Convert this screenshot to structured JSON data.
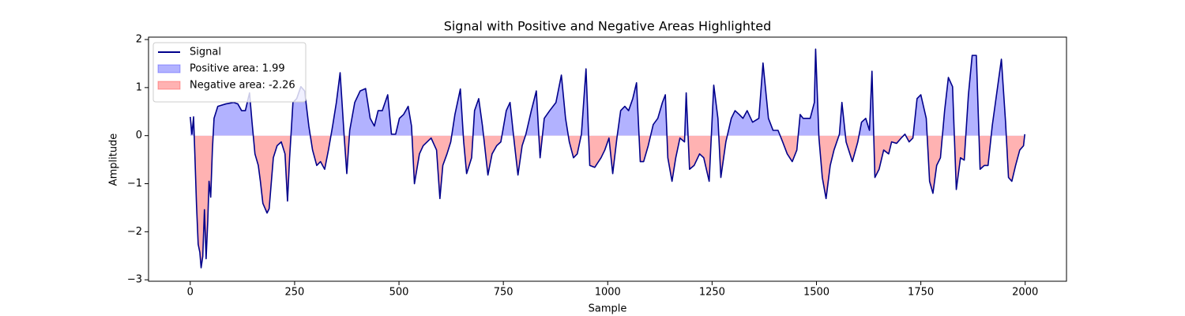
{
  "chart_data": {
    "type": "line",
    "title": "Signal with Positive and Negative Areas Highlighted",
    "x_label": "Sample",
    "y_label": "Amplitude",
    "xlim": [
      -99.95,
      2098.95
    ],
    "ylim": [
      -3.03,
      2.05
    ],
    "xticks": [
      0,
      250,
      500,
      750,
      1000,
      1250,
      1500,
      1750,
      2000
    ],
    "yticks": [
      {
        "value": -3,
        "label": "−3"
      },
      {
        "value": -2,
        "label": "−2"
      },
      {
        "value": -1,
        "label": "−1"
      },
      0,
      1,
      2
    ],
    "legend": "upper left",
    "x": [
      0,
      4,
      8,
      11,
      15,
      19,
      23,
      26,
      30,
      34,
      38,
      42,
      45,
      49,
      53,
      57,
      66,
      85,
      104,
      114,
      123,
      132,
      142,
      148,
      155,
      163,
      168,
      174,
      184,
      189,
      199,
      208,
      218,
      227,
      233,
      238,
      246,
      255,
      265,
      274,
      284,
      293,
      303,
      312,
      322,
      331,
      341,
      350,
      359,
      369,
      375,
      382,
      394,
      407,
      420,
      431,
      441,
      450,
      460,
      473,
      482,
      492,
      501,
      511,
      522,
      530,
      537,
      549,
      558,
      577,
      590,
      598,
      605,
      615,
      624,
      634,
      647,
      655,
      662,
      674,
      681,
      691,
      700,
      713,
      723,
      734,
      744,
      757,
      766,
      776,
      785,
      795,
      804,
      817,
      829,
      838,
      848,
      861,
      876,
      889,
      899,
      908,
      918,
      927,
      937,
      948,
      957,
      969,
      984,
      993,
      1003,
      1012,
      1022,
      1031,
      1041,
      1050,
      1060,
      1069,
      1078,
      1086,
      1097,
      1109,
      1120,
      1131,
      1138,
      1144,
      1154,
      1163,
      1173,
      1184,
      1188,
      1196,
      1207,
      1220,
      1230,
      1243,
      1254,
      1264,
      1271,
      1283,
      1296,
      1305,
      1315,
      1324,
      1334,
      1347,
      1362,
      1372,
      1385,
      1396,
      1408,
      1419,
      1430,
      1442,
      1453,
      1461,
      1468,
      1485,
      1495,
      1498,
      1506,
      1514,
      1523,
      1533,
      1542,
      1555,
      1561,
      1571,
      1586,
      1599,
      1608,
      1618,
      1627,
      1633,
      1640,
      1650,
      1661,
      1673,
      1680,
      1692,
      1703,
      1712,
      1722,
      1731,
      1741,
      1750,
      1763,
      1771,
      1779,
      1788,
      1797,
      1807,
      1816,
      1826,
      1835,
      1845,
      1854,
      1864,
      1873,
      1883,
      1892,
      1902,
      1911,
      1921,
      1934,
      1943,
      1953,
      1960,
      1968,
      1977,
      1987,
      1996,
      1999
    ],
    "series": [
      {
        "name": "Signal",
        "color": "#00008b",
        "values": [
          0.39,
          0.03,
          0.39,
          -0.38,
          -1.44,
          -2.26,
          -2.43,
          -2.75,
          -2.51,
          -1.54,
          -2.56,
          -1.77,
          -0.95,
          -1.28,
          -0.3,
          0.36,
          0.61,
          0.66,
          0.69,
          0.66,
          0.52,
          0.52,
          0.89,
          0.28,
          -0.38,
          -0.62,
          -0.95,
          -1.41,
          -1.61,
          -1.52,
          -0.46,
          -0.21,
          -0.13,
          -0.38,
          -1.36,
          -0.46,
          0.69,
          0.77,
          1.02,
          0.93,
          0.2,
          -0.3,
          -0.62,
          -0.54,
          -0.7,
          -0.3,
          0.2,
          0.69,
          1.31,
          -0.05,
          -0.79,
          0.11,
          0.69,
          0.93,
          0.98,
          0.36,
          0.2,
          0.52,
          0.52,
          0.85,
          0.03,
          0.03,
          0.36,
          0.44,
          0.61,
          0.2,
          -1.0,
          -0.38,
          -0.21,
          -0.05,
          -0.3,
          -1.31,
          -0.62,
          -0.38,
          -0.13,
          0.44,
          0.97,
          -0.13,
          -0.79,
          -0.46,
          0.52,
          0.77,
          0.2,
          -0.82,
          -0.38,
          -0.21,
          -0.13,
          0.52,
          0.69,
          -0.13,
          -0.82,
          -0.21,
          0.03,
          0.52,
          0.93,
          -0.46,
          0.36,
          0.52,
          0.69,
          1.26,
          0.36,
          -0.13,
          -0.46,
          -0.38,
          0.03,
          1.39,
          -0.62,
          -0.66,
          -0.46,
          -0.3,
          -0.05,
          -0.79,
          -0.05,
          0.52,
          0.61,
          0.52,
          0.77,
          1.1,
          -0.54,
          -0.54,
          -0.21,
          0.23,
          0.36,
          0.69,
          0.85,
          -0.46,
          -0.95,
          -0.46,
          -0.05,
          -0.13,
          0.89,
          -0.7,
          -0.62,
          -0.38,
          -0.46,
          -0.95,
          1.05,
          0.36,
          -0.87,
          -0.13,
          0.36,
          0.52,
          0.44,
          0.36,
          0.52,
          0.28,
          0.36,
          1.51,
          0.36,
          0.11,
          0.11,
          -0.13,
          -0.38,
          -0.54,
          -0.3,
          0.44,
          0.36,
          0.36,
          0.69,
          1.8,
          -0.05,
          -0.87,
          -1.31,
          -0.62,
          -0.3,
          0.03,
          0.69,
          -0.13,
          -0.54,
          -0.13,
          0.28,
          0.36,
          0.11,
          1.34,
          -0.87,
          -0.7,
          -0.3,
          -0.38,
          -0.13,
          -0.16,
          -0.05,
          0.03,
          -0.13,
          -0.05,
          0.77,
          0.85,
          0.36,
          -0.95,
          -1.2,
          -0.62,
          -0.46,
          0.52,
          1.21,
          1.02,
          -1.12,
          -0.46,
          -0.51,
          0.85,
          1.67,
          1.67,
          -0.7,
          -0.62,
          -0.62,
          0.2,
          1.02,
          1.59,
          0.28,
          -0.87,
          -0.95,
          -0.62,
          -0.3,
          -0.21,
          0.03
        ]
      }
    ],
    "fills": [
      {
        "name": "Positive area: 1.99",
        "color": "#0000ff",
        "where": "above"
      },
      {
        "name": "Negative area: -2.26",
        "color": "#ff0000",
        "where": "below"
      }
    ]
  }
}
